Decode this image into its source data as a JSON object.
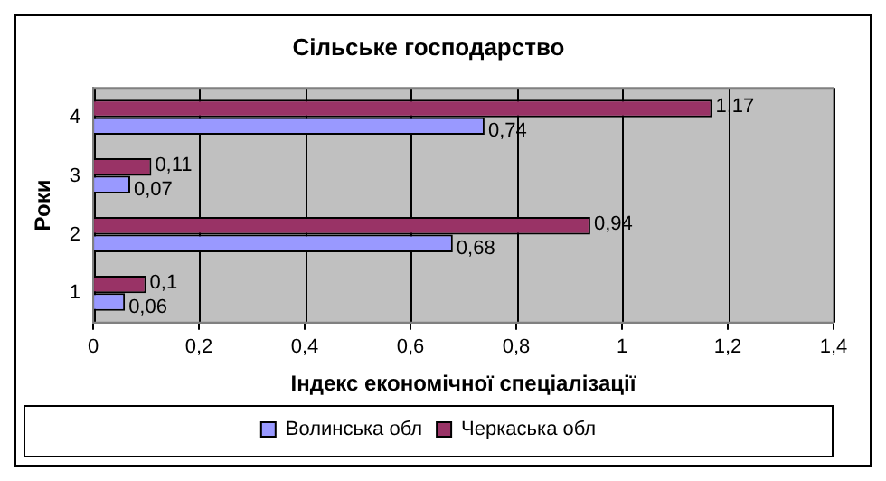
{
  "chart_data": {
    "type": "bar",
    "orientation": "horizontal",
    "title": "Сільське господарство",
    "xlabel": "Індекс економічної спеціалізації",
    "ylabel": "Роки",
    "categories": [
      "4",
      "3",
      "2",
      "1"
    ],
    "series": [
      {
        "name": "Волинська обл",
        "color": "#9999ff",
        "values": [
          0.74,
          0.07,
          0.68,
          0.06
        ],
        "value_labels": [
          "0,74",
          "0,07",
          "0,68",
          "0,06"
        ]
      },
      {
        "name": "Черкаська обл",
        "color": "#993366",
        "values": [
          1.17,
          0.11,
          0.94,
          0.1
        ],
        "value_labels": [
          "1,17",
          "0,11",
          "0,94",
          "0,1"
        ]
      }
    ],
    "xlim": [
      0,
      1.4
    ],
    "xticks": [
      0,
      {
        "value": 0.2,
        "label": "0,2"
      },
      {
        "value": 0.4,
        "label": "0,4"
      },
      {
        "value": 0.6,
        "label": "0,6"
      },
      {
        "value": 0.8,
        "label": "0,8"
      },
      1,
      {
        "value": 1.2,
        "label": "1,2"
      },
      {
        "value": 1.4,
        "label": "1,4"
      }
    ],
    "grid": "x",
    "legend": "bottom"
  }
}
